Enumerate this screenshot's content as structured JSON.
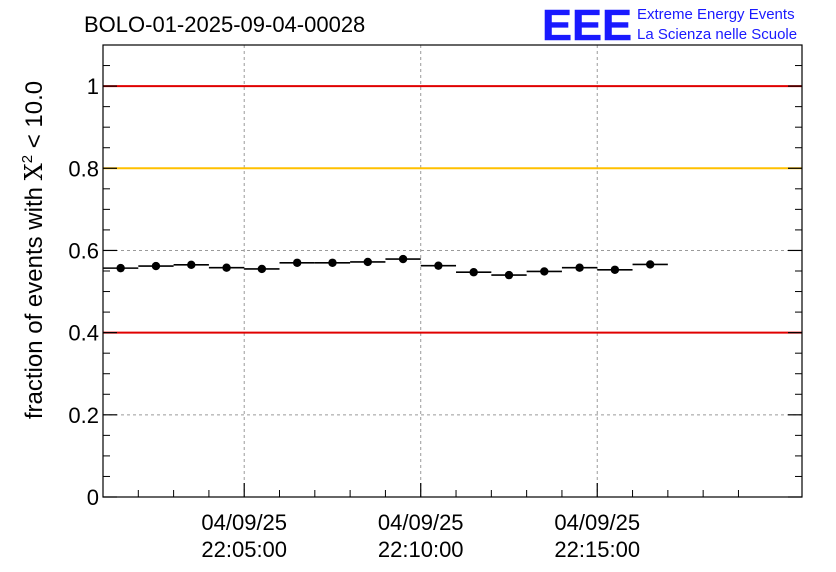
{
  "chart_data": {
    "type": "scatter",
    "title": "BOLO-01-2025-09-04-00028",
    "ylabel": {
      "main": "fraction of events with ",
      "symbol": "X",
      "superscript": "2",
      "suffix": " < 10.0"
    },
    "ylim": [
      0,
      1.1
    ],
    "yticks": [
      {
        "value": 0,
        "label": "0"
      },
      {
        "value": 0.2,
        "label": "0.2"
      },
      {
        "value": 0.4,
        "label": "0.4"
      },
      {
        "value": 0.6,
        "label": "0.6"
      },
      {
        "value": 0.8,
        "label": "0.8"
      },
      {
        "value": 1,
        "label": "1"
      }
    ],
    "xlim_minutes": [
      -4.0,
      15.8
    ],
    "xticks": [
      {
        "minute": 0,
        "date": "04/09/25",
        "time": "22:05:00"
      },
      {
        "minute": 5,
        "date": "04/09/25",
        "time": "22:10:00"
      },
      {
        "minute": 10,
        "date": "04/09/25",
        "time": "22:15:00"
      }
    ],
    "threshold_lines": [
      {
        "value": 1.0,
        "color": "#e00000"
      },
      {
        "value": 0.8,
        "color": "#ffc000"
      },
      {
        "value": 0.4,
        "color": "#e00000"
      }
    ],
    "bin_width_minutes": 1.0,
    "series": [
      {
        "name": "fraction",
        "x_minutes": [
          -3.5,
          -2.5,
          -1.5,
          -0.5,
          0.5,
          1.5,
          2.5,
          3.5,
          4.5,
          5.5,
          6.5,
          7.5,
          8.5,
          9.5,
          10.5,
          11.5
        ],
        "values": [
          0.557,
          0.562,
          0.565,
          0.558,
          0.555,
          0.57,
          0.57,
          0.572,
          0.579,
          0.563,
          0.547,
          0.54,
          0.549,
          0.558,
          0.553,
          0.566
        ]
      }
    ],
    "grid": true
  },
  "logo": {
    "mark": "EEE",
    "line1": "Extreme Energy Events",
    "line2": "La Scienza nelle Scuole",
    "color": "#1a1aff"
  }
}
